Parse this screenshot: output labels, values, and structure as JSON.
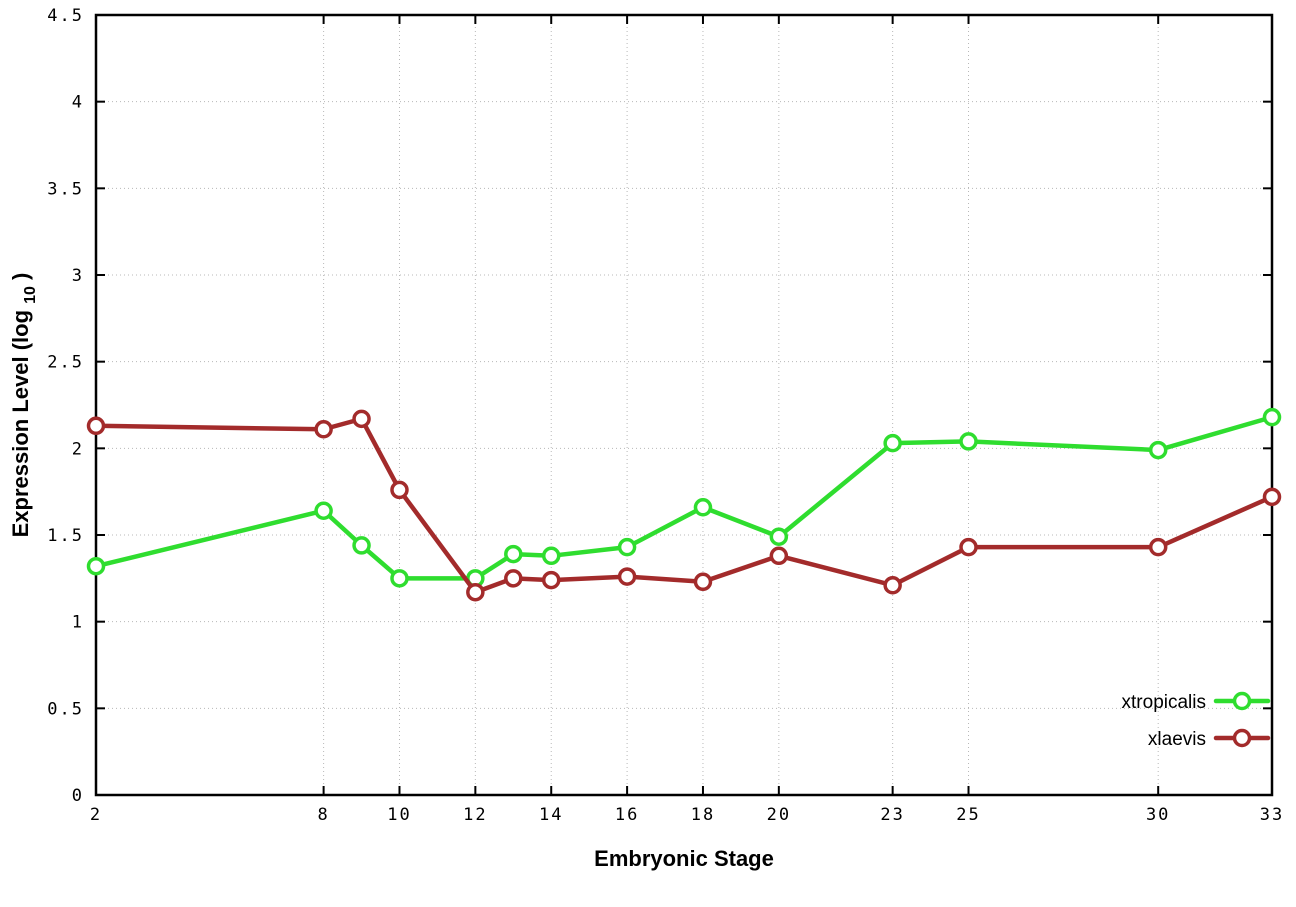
{
  "chart": {
    "x_label": "Embryonic Stage",
    "y_label_main": "Expression Level (log",
    "y_label_sub": "10",
    "y_label_close": ")"
  },
  "chart_data": {
    "type": "line",
    "title": "",
    "xlabel": "Embryonic Stage",
    "ylabel": "Expression Level (log10)",
    "x": [
      2,
      8,
      9,
      10,
      12,
      13,
      14,
      16,
      18,
      20,
      23,
      25,
      30,
      33
    ],
    "x_ticks": [
      2,
      8,
      10,
      12,
      14,
      16,
      18,
      20,
      23,
      25,
      30,
      33
    ],
    "y_ticks": [
      0,
      0.5,
      1,
      1.5,
      2,
      2.5,
      3,
      3.5,
      4,
      4.5
    ],
    "xlim": [
      2,
      33
    ],
    "ylim": [
      0,
      4.5
    ],
    "grid": true,
    "grid_color": "#b8b8b8",
    "legend_position": "bottom-right",
    "marker": "open-circle",
    "series": [
      {
        "name": "xtropicalis",
        "color": "#2fdd2f",
        "values": [
          1.32,
          1.64,
          1.44,
          1.25,
          1.25,
          1.39,
          1.38,
          1.43,
          1.66,
          1.49,
          2.03,
          2.04,
          1.99,
          2.18
        ]
      },
      {
        "name": "xlaevis",
        "color": "#a32b2b",
        "values": [
          2.13,
          2.11,
          2.17,
          1.76,
          1.17,
          1.25,
          1.24,
          1.26,
          1.23,
          1.38,
          1.21,
          1.43,
          1.43,
          1.72
        ]
      }
    ]
  }
}
